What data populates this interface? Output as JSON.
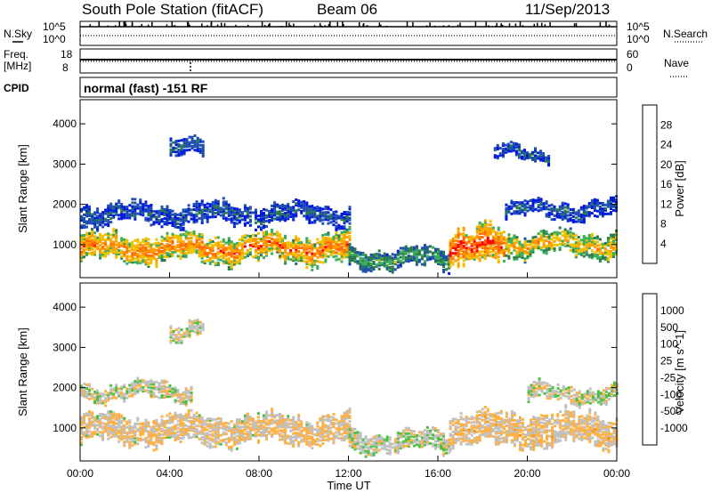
{
  "header": {
    "station": "South Pole Station (fitACF)",
    "beam": "Beam 06",
    "date": "11/Sep/2013"
  },
  "params": {
    "nsky_label": "N.Sky",
    "nsearch_label": "N.Search",
    "freq_label_1": "Freq.",
    "freq_label_2": "[MHz]",
    "nave_label": "Nave",
    "cpid_label": "CPID",
    "cpid_value": "normal (fast) -151 RF",
    "noise_ticks": [
      "10^5",
      "10^0"
    ],
    "freq_ticks": [
      "18",
      "8"
    ],
    "nave_ticks": [
      "60",
      "0"
    ]
  },
  "axes": {
    "ylabel": "Slant Range [km]",
    "xlabel": "Time UT",
    "yticks": [
      1000,
      2000,
      3000,
      4000
    ],
    "ylim": [
      180,
      4600
    ],
    "xlim": [
      0,
      24
    ],
    "xtick_labels": [
      "00:00",
      "04:00",
      "08:00",
      "12:00",
      "16:00",
      "20:00",
      "00:00"
    ]
  },
  "chart_data": [
    {
      "type": "heatmap",
      "name": "power",
      "colorbar_label": "Power [dB]",
      "colorbar_ticks": [
        "28",
        "24",
        "20",
        "16",
        "12",
        "8",
        "4"
      ],
      "colorbar_range": [
        0,
        30
      ],
      "colors": [
        "#0018e0",
        "#1f4fb0",
        "#2a7a4e",
        "#3cae5a",
        "#f0c000",
        "#ff9a00",
        "#ff6a00",
        "#ff0000"
      ],
      "bands": [
        {
          "t0": 0.0,
          "t1": 12.0,
          "r_center": 950,
          "r_width": 350,
          "value": 24
        },
        {
          "t0": 12.0,
          "t1": 16.5,
          "r_center": 700,
          "r_width": 250,
          "value": 12
        },
        {
          "t0": 16.5,
          "t1": 19.0,
          "r_center": 1000,
          "r_width": 450,
          "value": 28
        },
        {
          "t0": 19.0,
          "t1": 24.0,
          "r_center": 1050,
          "r_width": 300,
          "value": 20
        },
        {
          "t0": 0.0,
          "t1": 12.0,
          "r_center": 1800,
          "r_width": 250,
          "value": 6
        },
        {
          "t0": 19.0,
          "t1": 24.0,
          "r_center": 1900,
          "r_width": 200,
          "value": 6
        },
        {
          "t0": 4.0,
          "t1": 5.5,
          "r_center": 3400,
          "r_width": 200,
          "value": 6
        },
        {
          "t0": 18.5,
          "t1": 21.0,
          "r_center": 3300,
          "r_width": 150,
          "value": 6
        }
      ]
    },
    {
      "type": "heatmap",
      "name": "velocity",
      "colorbar_label": "Velocity [m s^-1]",
      "colorbar_ticks": [
        "1000",
        "500",
        "100",
        "25",
        "-25",
        "-100",
        "-500",
        "-1000"
      ],
      "colorbar_range": [
        -1200,
        1200
      ],
      "colors": [
        "#ff0000",
        "#ff5a00",
        "#ff9000",
        "#ffb040",
        "#c0c0c0",
        "#4cc040",
        "#2a8a5a",
        "#2050b0",
        "#1010d0"
      ],
      "bands": [
        {
          "t0": 0.0,
          "t1": 12.0,
          "r_center": 1000,
          "r_width": 350,
          "value": -150
        },
        {
          "t0": 12.0,
          "t1": 16.5,
          "r_center": 700,
          "r_width": 250,
          "value": 50
        },
        {
          "t0": 16.5,
          "t1": 24.0,
          "r_center": 1000,
          "r_width": 400,
          "value": -200
        },
        {
          "t0": 0.0,
          "t1": 5.0,
          "r_center": 1950,
          "r_width": 200,
          "value": 0
        },
        {
          "t0": 20.0,
          "t1": 24.0,
          "r_center": 1900,
          "r_width": 200,
          "value": 0
        },
        {
          "t0": 4.0,
          "t1": 5.5,
          "r_center": 3400,
          "r_width": 200,
          "value": 0
        }
      ]
    }
  ]
}
